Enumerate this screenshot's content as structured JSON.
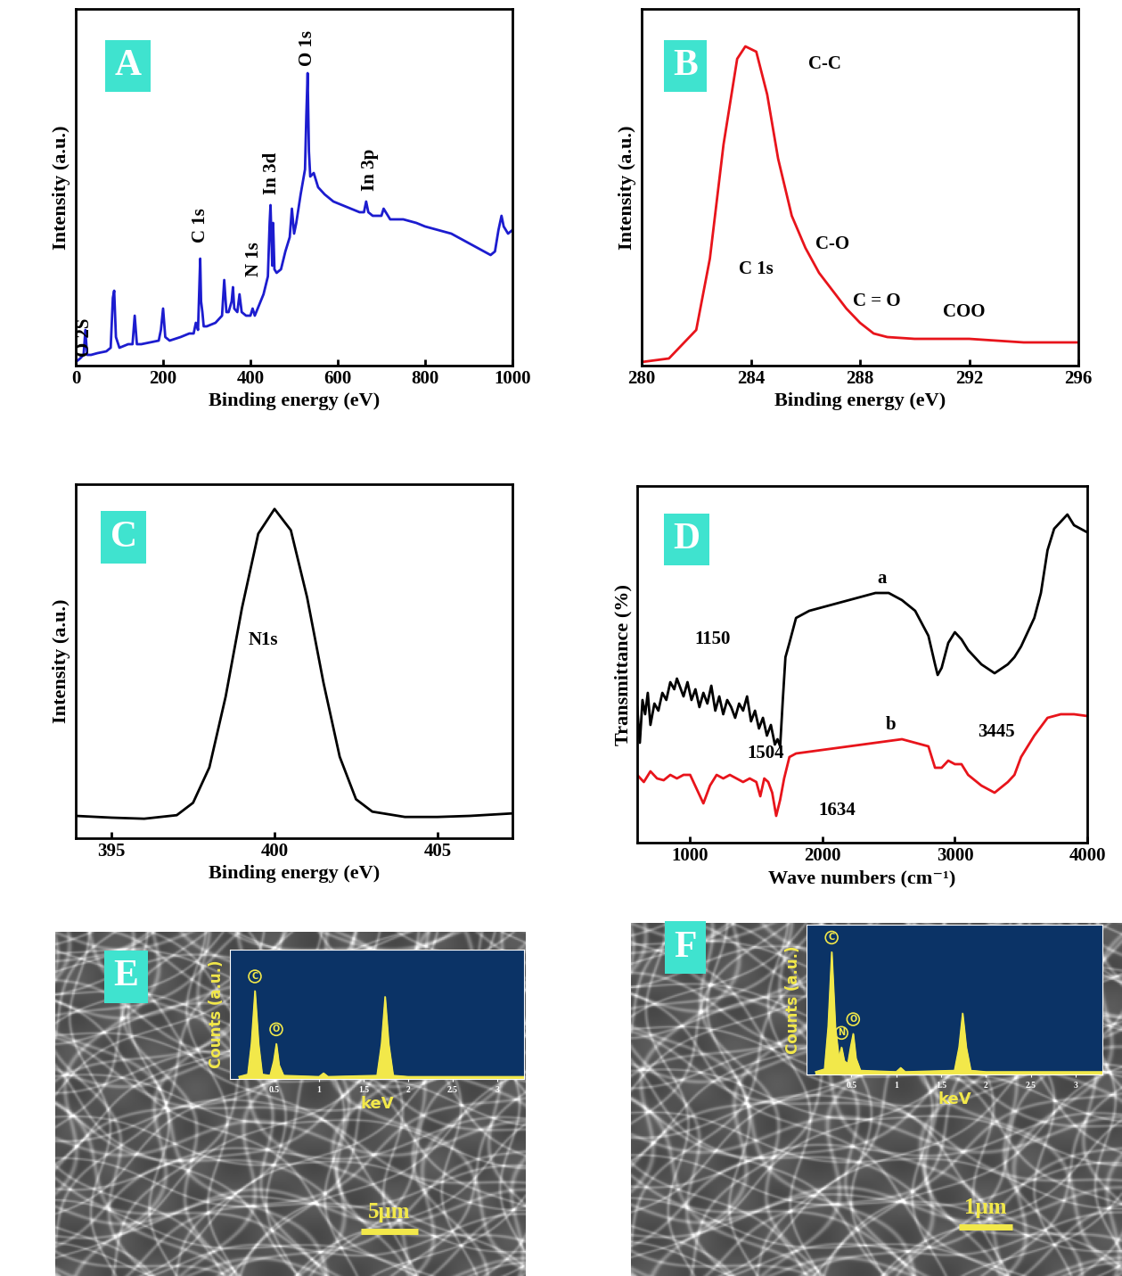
{
  "chart_data": [
    {
      "type": "line",
      "panel_label": "A",
      "x_label": "Binding energy (eV)",
      "y_label": "Intensity (a.u.)",
      "xlim": [
        0,
        1000
      ],
      "ylim": [
        0,
        100
      ],
      "xticks": [
        0,
        200,
        400,
        600,
        800,
        1000
      ],
      "tick_labels": "x",
      "series": [
        {
          "color": "#1c1ccf",
          "x": [
            0,
            10,
            18,
            22,
            26,
            35,
            50,
            70,
            80,
            85,
            88,
            92,
            100,
            120,
            130,
            135,
            140,
            150,
            170,
            190,
            195,
            200,
            205,
            215,
            240,
            260,
            270,
            275,
            280,
            283,
            285,
            287,
            290,
            293,
            300,
            320,
            335,
            340,
            345,
            350,
            357,
            360,
            363,
            370,
            375,
            380,
            390,
            400,
            405,
            410,
            420,
            430,
            440,
            444,
            446,
            450,
            452,
            455,
            460,
            470,
            480,
            490,
            495,
            500,
            505,
            515,
            525,
            528,
            531,
            534,
            537,
            545,
            555,
            570,
            590,
            610,
            630,
            650,
            660,
            665,
            670,
            680,
            700,
            705,
            720,
            750,
            780,
            800,
            830,
            860,
            890,
            920,
            950,
            960,
            968,
            975,
            980,
            990,
            1000
          ],
          "values": [
            1,
            2,
            3,
            10,
            3,
            3,
            3.5,
            4,
            5,
            19,
            21,
            8,
            5,
            6,
            6,
            14,
            6,
            6,
            6.5,
            7,
            10,
            16,
            8,
            7,
            8,
            9,
            9,
            12,
            10,
            22,
            30,
            18,
            15,
            11,
            11,
            12,
            14,
            24,
            15,
            15,
            18,
            22,
            16,
            15,
            20,
            15,
            14,
            14,
            16,
            14,
            17,
            20,
            25,
            40,
            45,
            28,
            40,
            27,
            26,
            27,
            32,
            36,
            44,
            37,
            40,
            48,
            55,
            70,
            82,
            60,
            53,
            54,
            50,
            48,
            46,
            45,
            44,
            43,
            43,
            46,
            43,
            42,
            42,
            44,
            41,
            41,
            40,
            39,
            38,
            37,
            35,
            33,
            31,
            32,
            38,
            42,
            39,
            37,
            38
          ]
        }
      ],
      "annotations": [
        {
          "text": "O 2S",
          "x": 20,
          "y": 2.5
        },
        {
          "text": "C 1s",
          "x": 286,
          "y": 34.5
        },
        {
          "text": "N 1s",
          "x": 408,
          "y": 25
        },
        {
          "text": "In 3d",
          "x": 449,
          "y": 48
        },
        {
          "text": "O 1s",
          "x": 530,
          "y": 84
        },
        {
          "text": "In 3p",
          "x": 673,
          "y": 49
        }
      ]
    },
    {
      "type": "line",
      "panel_label": "B",
      "x_label": "Binding energy (eV)",
      "y_label": "Intensity (a.u.)",
      "xlim": [
        280,
        296
      ],
      "ylim": [
        0,
        100
      ],
      "xticks": [
        280,
        284,
        288,
        292,
        296
      ],
      "tick_labels": "x",
      "series": [
        {
          "color": "#e8141b",
          "x": [
            280,
            281,
            282,
            282.5,
            283,
            283.5,
            283.8,
            284.2,
            284.6,
            285,
            285.5,
            286,
            286.5,
            287,
            287.5,
            288,
            288.5,
            289,
            290,
            291,
            292,
            293,
            294,
            295,
            296
          ],
          "values": [
            1,
            2,
            10,
            30,
            62,
            86,
            89.5,
            88,
            76,
            58,
            42,
            33,
            26,
            21,
            16,
            12,
            9,
            8,
            7.5,
            7.5,
            7.5,
            7,
            6.5,
            6.5,
            6.5
          ]
        }
      ],
      "annotations": [
        {
          "text": "C-C",
          "x": 286.7,
          "y": 84.5
        },
        {
          "text": "C 1s",
          "x": 284.2,
          "y": 27
        },
        {
          "text": "C-O",
          "x": 287.0,
          "y": 34
        },
        {
          "text": "C = O",
          "x": 288.6,
          "y": 18
        },
        {
          "text": "COO",
          "x": 291.8,
          "y": 15
        }
      ]
    },
    {
      "type": "line",
      "panel_label": "C",
      "x_label": "Binding energy (eV)",
      "y_label": "Intensity (a.u.)",
      "xlim": [
        393.9,
        407.3
      ],
      "ylim": [
        0,
        100
      ],
      "xticks": [
        395,
        400,
        405
      ],
      "tick_labels": "x",
      "series": [
        {
          "color": "#000000",
          "x": [
            393.9,
            395,
            396,
            397,
            397.5,
            398,
            398.5,
            399,
            399.5,
            400,
            400.5,
            401,
            401.5,
            402,
            402.5,
            403,
            404,
            405,
            406,
            407.3
          ],
          "values": [
            6.3,
            5.8,
            5.5,
            6.5,
            10,
            20,
            40,
            65,
            86,
            93,
            87,
            68,
            44,
            23,
            11,
            7.5,
            6,
            6,
            6.3,
            7
          ]
        }
      ],
      "annotations": [
        {
          "text": "N1s",
          "x": 399.66,
          "y": 56
        }
      ]
    },
    {
      "type": "line",
      "panel_label": "D",
      "x_label": "Wave numbers (cm⁻¹)",
      "y_label": "Transmittance (%)",
      "xlim": [
        600,
        4000
      ],
      "ylim": [
        0,
        100
      ],
      "xticks": [
        1000,
        2000,
        3000,
        4000
      ],
      "tick_labels": "x",
      "series": [
        {
          "color": "#000000",
          "x": [
            600,
            620,
            640,
            660,
            680,
            700,
            730,
            760,
            790,
            820,
            850,
            880,
            900,
            920,
            950,
            980,
            1010,
            1040,
            1070,
            1100,
            1130,
            1160,
            1190,
            1220,
            1250,
            1280,
            1310,
            1340,
            1370,
            1400,
            1430,
            1460,
            1490,
            1520,
            1550,
            1580,
            1610,
            1640,
            1660,
            1680,
            1700,
            1720,
            1750,
            1800,
            1900,
            2000,
            2100,
            2200,
            2300,
            2400,
            2500,
            2600,
            2700,
            2800,
            2850,
            2870,
            2900,
            2950,
            3000,
            3050,
            3100,
            3200,
            3300,
            3400,
            3450,
            3500,
            3600,
            3650,
            3700,
            3750,
            3800,
            3850,
            3900,
            3950,
            4000
          ],
          "values": [
            38,
            28,
            40,
            36,
            42,
            33,
            39,
            37,
            42,
            40,
            45,
            43,
            46,
            44,
            41,
            45,
            40,
            43,
            38,
            42,
            39,
            44,
            37,
            41,
            36,
            40,
            38,
            35,
            39,
            37,
            41,
            34,
            37,
            32,
            35,
            30,
            33,
            27.5,
            29,
            27,
            40,
            52,
            56,
            63,
            65,
            66,
            67,
            68,
            69,
            70,
            70,
            68,
            65,
            58,
            50,
            47,
            49,
            56,
            59,
            57,
            54,
            50,
            47.5,
            50,
            52,
            55,
            63,
            70,
            82,
            88,
            90,
            92,
            89,
            88,
            87
          ]
        },
        {
          "color": "#e8141b",
          "x": [
            600,
            650,
            700,
            750,
            800,
            850,
            900,
            950,
            1000,
            1050,
            1100,
            1150,
            1200,
            1250,
            1300,
            1350,
            1400,
            1450,
            1500,
            1530,
            1560,
            1590,
            1620,
            1650,
            1680,
            1710,
            1750,
            1800,
            2000,
            2200,
            2400,
            2600,
            2800,
            2850,
            2900,
            2950,
            3000,
            3050,
            3100,
            3200,
            3300,
            3400,
            3450,
            3500,
            3600,
            3700,
            3800,
            3900,
            4000
          ],
          "values": [
            19,
            17,
            20,
            18,
            17.5,
            19,
            18,
            19,
            19,
            15,
            11,
            16,
            19,
            18,
            19,
            18,
            17,
            18,
            17,
            13,
            18,
            17,
            14,
            7.5,
            12,
            18,
            24,
            25,
            26,
            27,
            28,
            29,
            27,
            21,
            21,
            23,
            22,
            22,
            19,
            16,
            14,
            17,
            19,
            24,
            30,
            35,
            36,
            36,
            35.5
          ]
        }
      ],
      "annotations": [
        {
          "text": "a",
          "x": 2450,
          "y": 74
        },
        {
          "text": "b",
          "x": 2517,
          "y": 33
        },
        {
          "text": "1150",
          "x": 1169,
          "y": 57
        },
        {
          "text": "1504",
          "x": 1573,
          "y": 25
        },
        {
          "text": "1634",
          "x": 2113,
          "y": 9
        },
        {
          "text": "3445",
          "x": 3313,
          "y": 31
        }
      ]
    },
    {
      "type": "sem_eds",
      "panel_label": "E",
      "scale_bar": "5μm",
      "inset": {
        "type": "area",
        "x_label": "keV",
        "y_label": "Counts (a.u.)",
        "color": "#f2e84a",
        "xlim": [
          0,
          3.3
        ],
        "ylim": [
          0,
          110
        ],
        "xticks": [
          0.5,
          1,
          1.5,
          2,
          2.5,
          3
        ],
        "tick_labels": "x",
        "x": [
          0.1,
          0.2,
          0.24,
          0.28,
          0.32,
          0.36,
          0.45,
          0.49,
          0.52,
          0.55,
          0.6,
          1.0,
          1.05,
          1.1,
          1.65,
          1.7,
          1.74,
          1.78,
          1.83,
          2.0,
          2.5,
          3.0,
          3.3
        ],
        "values": [
          2,
          4,
          30,
          75,
          30,
          4,
          3,
          15,
          30,
          12,
          3,
          2,
          5,
          2,
          3,
          30,
          70,
          30,
          3,
          2,
          2,
          2,
          2
        ],
        "peak_labels": [
          {
            "text": "C",
            "x": 0.28,
            "y": 75
          },
          {
            "text": "O",
            "x": 0.52,
            "y": 30
          }
        ]
      }
    },
    {
      "type": "sem_eds",
      "panel_label": "F",
      "scale_bar": "1μm",
      "inset": {
        "type": "area",
        "x_label": "keV",
        "y_label": "Counts (a.u.)",
        "color": "#f2e84a",
        "xlim": [
          0,
          3.3
        ],
        "ylim": [
          0,
          110
        ],
        "xticks": [
          0.5,
          1,
          1.5,
          2,
          2.5,
          3
        ],
        "tick_labels": "x",
        "x": [
          0.1,
          0.2,
          0.24,
          0.28,
          0.32,
          0.36,
          0.39,
          0.42,
          0.46,
          0.49,
          0.52,
          0.55,
          0.6,
          1.0,
          1.05,
          1.1,
          1.65,
          1.7,
          1.74,
          1.78,
          1.83,
          2.0,
          2.5,
          3.0,
          3.3
        ],
        "values": [
          2,
          4,
          35,
          90,
          35,
          12,
          20,
          10,
          8,
          20,
          30,
          12,
          3,
          2,
          5,
          2,
          3,
          20,
          45,
          20,
          3,
          2,
          2,
          2,
          2
        ],
        "peak_labels": [
          {
            "text": "C",
            "x": 0.28,
            "y": 90
          },
          {
            "text": "N",
            "x": 0.39,
            "y": 20
          },
          {
            "text": "O",
            "x": 0.52,
            "y": 30
          }
        ]
      }
    }
  ]
}
